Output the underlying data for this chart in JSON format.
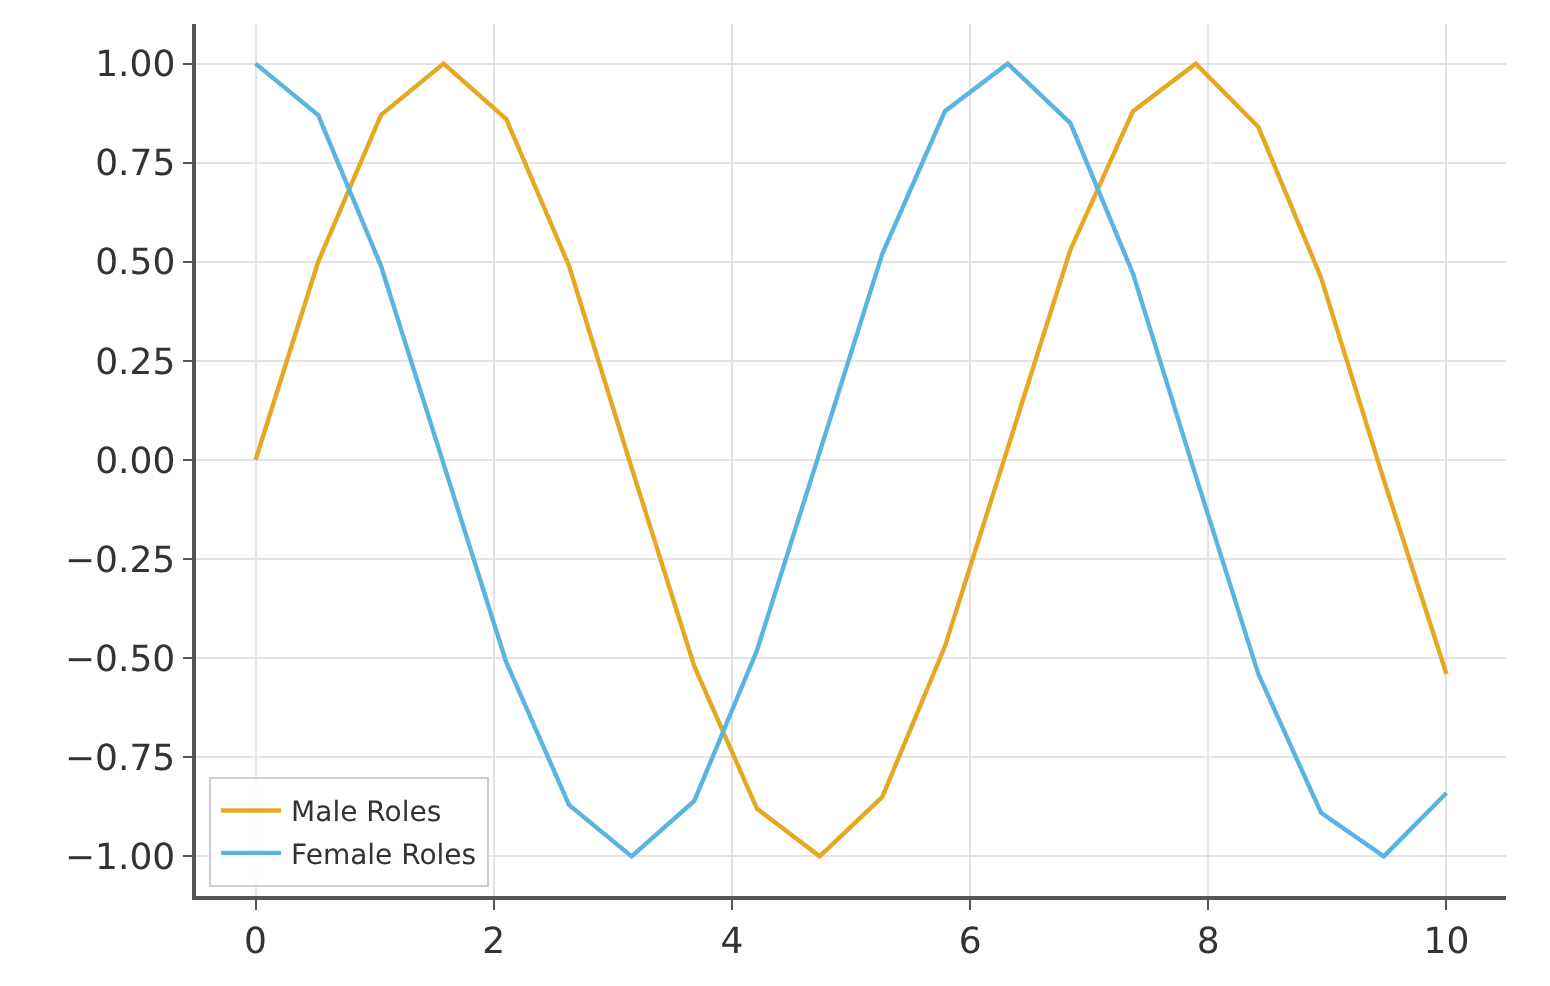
{
  "chart_data": {
    "type": "line",
    "x": [
      0,
      0.526,
      1.053,
      1.579,
      2.105,
      2.632,
      3.158,
      3.684,
      4.211,
      4.737,
      5.263,
      5.789,
      6.316,
      6.842,
      7.368,
      7.895,
      8.421,
      8.947,
      9.474,
      10
    ],
    "series": [
      {
        "name": "Male Roles",
        "color": "#e5a823",
        "values": [
          0,
          0.5,
          0.87,
          1,
          0.86,
          0.49,
          -0.02,
          -0.52,
          -0.88,
          -1,
          -0.85,
          -0.47,
          0.03,
          0.53,
          0.88,
          1,
          0.84,
          0.46,
          -0.05,
          -0.54
        ]
      },
      {
        "name": "Female Roles",
        "color": "#5ab4e0",
        "values": [
          1,
          0.87,
          0.49,
          -0.01,
          -0.51,
          -0.87,
          -1,
          -0.86,
          -0.48,
          0.02,
          0.52,
          0.88,
          1,
          0.85,
          0.47,
          -0.04,
          -0.54,
          -0.89,
          -1,
          -0.84
        ]
      }
    ],
    "xlim": [
      -0.5,
      10.5
    ],
    "xticks": [
      0,
      2,
      4,
      6,
      8,
      10
    ],
    "ylim": [
      -1.1,
      1.1
    ],
    "yticks": [
      {
        "value": -1,
        "label": "−1.00"
      },
      {
        "value": -0.75,
        "label": "−0.75"
      },
      {
        "value": -0.5,
        "label": "−0.50"
      },
      {
        "value": -0.25,
        "label": "−0.25"
      },
      {
        "value": 0,
        "label": "0.00"
      },
      {
        "value": 0.25,
        "label": "0.25"
      },
      {
        "value": 0.5,
        "label": "0.50"
      },
      {
        "value": 0.75,
        "label": "0.75"
      },
      {
        "value": 1,
        "label": "1.00"
      }
    ],
    "grid": true,
    "legend": "bottom left",
    "marker": "none",
    "line_style": "solid"
  }
}
